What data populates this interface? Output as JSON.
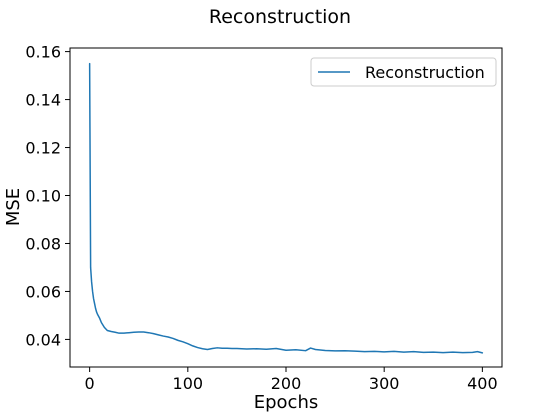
{
  "chart_data": {
    "type": "line",
    "title": "Reconstruction",
    "xlabel": "Epochs",
    "ylabel": "MSE",
    "xlim": [
      -20,
      420
    ],
    "ylim": [
      0.0285,
      0.1615
    ],
    "x_ticks": [
      0,
      100,
      200,
      300,
      400
    ],
    "x_tick_labels": [
      "0",
      "100",
      "200",
      "300",
      "400"
    ],
    "y_ticks": [
      0.04,
      0.06,
      0.08,
      0.1,
      0.12,
      0.14,
      0.16
    ],
    "y_tick_labels": [
      "0.04",
      "0.06",
      "0.08",
      "0.10",
      "0.12",
      "0.14",
      "0.16"
    ],
    "grid": false,
    "legend": {
      "position": "top-right",
      "entries": [
        "Reconstruction"
      ]
    },
    "series": [
      {
        "name": "Reconstruction",
        "color": "#1f77b4",
        "x": [
          0,
          1,
          2,
          3,
          4,
          5,
          6,
          7,
          8,
          10,
          12,
          15,
          18,
          22,
          26,
          30,
          35,
          40,
          45,
          50,
          55,
          60,
          65,
          70,
          75,
          80,
          85,
          90,
          95,
          100,
          105,
          110,
          115,
          120,
          125,
          130,
          135,
          140,
          145,
          150,
          160,
          170,
          180,
          190,
          200,
          210,
          220,
          225,
          230,
          240,
          250,
          260,
          270,
          280,
          290,
          300,
          310,
          320,
          330,
          340,
          350,
          360,
          370,
          380,
          390,
          395,
          400
        ],
        "y": [
          0.155,
          0.07,
          0.064,
          0.06,
          0.057,
          0.055,
          0.053,
          0.0515,
          0.0505,
          0.049,
          0.047,
          0.045,
          0.0437,
          0.0433,
          0.043,
          0.0426,
          0.0426,
          0.0428,
          0.043,
          0.0431,
          0.0431,
          0.0428,
          0.0424,
          0.0419,
          0.0414,
          0.041,
          0.0404,
          0.0396,
          0.039,
          0.0382,
          0.0373,
          0.0366,
          0.0361,
          0.0358,
          0.0362,
          0.0365,
          0.0363,
          0.0363,
          0.0362,
          0.0362,
          0.036,
          0.0361,
          0.0359,
          0.0362,
          0.0355,
          0.0357,
          0.0353,
          0.0364,
          0.0358,
          0.0354,
          0.0352,
          0.0353,
          0.0351,
          0.0349,
          0.035,
          0.0348,
          0.035,
          0.0347,
          0.0349,
          0.0346,
          0.0347,
          0.0345,
          0.0347,
          0.0345,
          0.0346,
          0.0349,
          0.0344
        ]
      }
    ]
  }
}
